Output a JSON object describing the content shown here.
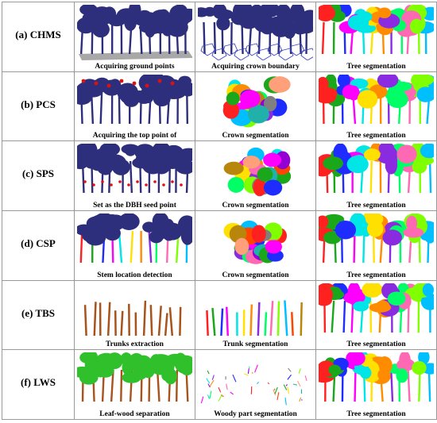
{
  "colors": {
    "tree_blue": "#2e2f7c",
    "ground_gray": "#a8a8a8",
    "boundary_blue": "#3b44c4",
    "marker_red": "#e01010",
    "trunk_brown": "#a8521c",
    "leaf_green": "#2fc02c",
    "border": "#9a9a9a"
  },
  "palette": [
    "#ff2020",
    "#1aa81a",
    "#1f2cff",
    "#ff00ff",
    "#00e5e5",
    "#ffe000",
    "#ff8c00",
    "#8a2be2",
    "#00ff66",
    "#ff69b4",
    "#7fff00",
    "#00bfff",
    "#ff4500",
    "#b8860b",
    "#9400d3",
    "#808080",
    "#ffa07a",
    "#20b2aa"
  ],
  "rows": [
    {
      "label": "(a)  CHMS",
      "panels": [
        {
          "caption": "Acquiring ground points",
          "style": "ground"
        },
        {
          "caption": "Acquiring crown boundary",
          "style": "boundary"
        },
        {
          "caption": "Tree segmentation",
          "style": "segmented"
        }
      ]
    },
    {
      "label": "(b)  PCS",
      "panels": [
        {
          "caption": "Acquiring the top point of",
          "style": "tops"
        },
        {
          "caption": "Crown segmentation",
          "style": "crowns"
        },
        {
          "caption": "Tree segmentation",
          "style": "segmented"
        }
      ]
    },
    {
      "label": "(c)  SPS",
      "panels": [
        {
          "caption": "Set as the DBH seed point",
          "style": "seeds"
        },
        {
          "caption": "Crown segmentation",
          "style": "crowns"
        },
        {
          "caption": "Tree segmentation",
          "style": "segmented"
        }
      ]
    },
    {
      "label": "(d)  CSP",
      "panels": [
        {
          "caption": "Stem location detection",
          "style": "stems"
        },
        {
          "caption": "Crown segmentation",
          "style": "crowns"
        },
        {
          "caption": "Tree segmentation",
          "style": "segmented"
        }
      ]
    },
    {
      "label": "(e)  TBS",
      "panels": [
        {
          "caption": "Trunks extraction",
          "style": "trunks"
        },
        {
          "caption": "Trunk segmentation",
          "style": "trunks-colored"
        },
        {
          "caption": "Tree segmentation",
          "style": "segmented"
        }
      ]
    },
    {
      "label": "(f)  LWS",
      "panels": [
        {
          "caption": "Leaf-wood separation",
          "style": "leafwood"
        },
        {
          "caption": "Woody part segmentation",
          "style": "woody"
        },
        {
          "caption": "Tree segmentation",
          "style": "segmented"
        }
      ]
    }
  ]
}
